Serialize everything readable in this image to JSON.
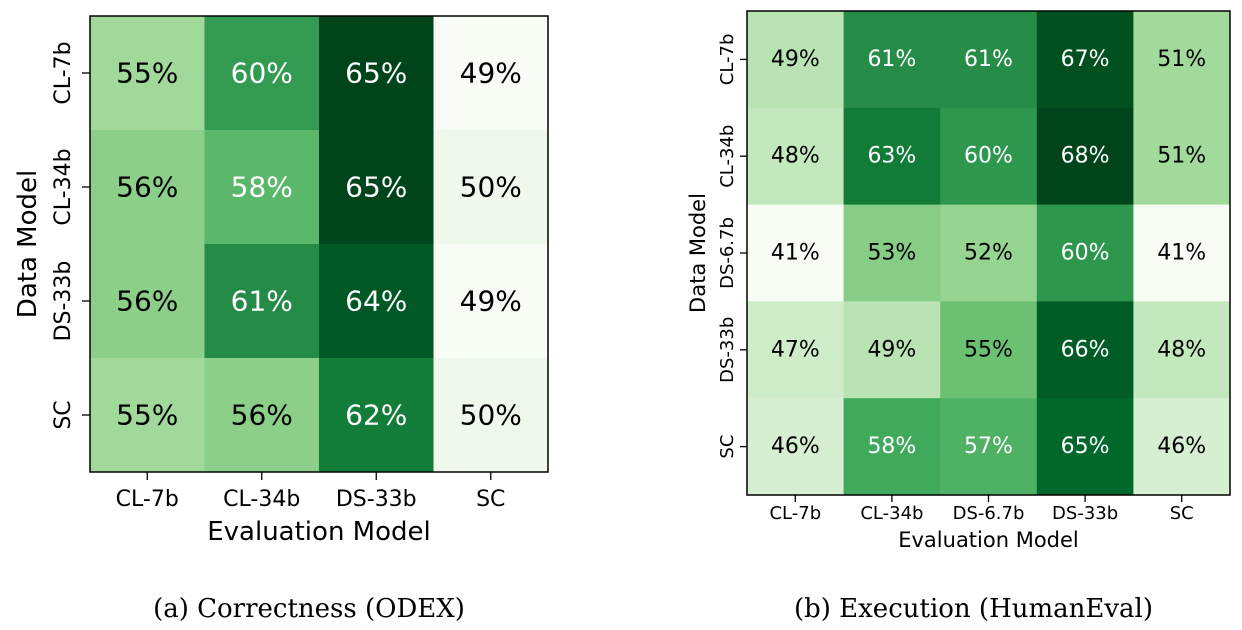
{
  "chart_data": [
    {
      "type": "heatmap",
      "caption": "(a) Correctness (ODEX)",
      "xlabel": "Evaluation Model",
      "ylabel": "Data Model",
      "x_categories": [
        "CL-7b",
        "CL-34b",
        "DS-33b",
        "SC"
      ],
      "y_categories": [
        "CL-7b",
        "CL-34b",
        "DS-33b",
        "SC"
      ],
      "values": [
        [
          55,
          60,
          65,
          49
        ],
        [
          56,
          58,
          65,
          50
        ],
        [
          56,
          61,
          64,
          49
        ],
        [
          55,
          56,
          62,
          50
        ]
      ],
      "value_suffix": "%",
      "colormap": "Greens",
      "vmin": 49,
      "vmax": 65
    },
    {
      "type": "heatmap",
      "caption": "(b) Execution (HumanEval)",
      "xlabel": "Evaluation Model",
      "ylabel": "Data Model",
      "x_categories": [
        "CL-7b",
        "CL-34b",
        "DS-6.7b",
        "DS-33b",
        "SC"
      ],
      "y_categories": [
        "CL-7b",
        "CL-34b",
        "DS-6.7b",
        "DS-33b",
        "SC"
      ],
      "values": [
        [
          49,
          61,
          61,
          67,
          51
        ],
        [
          48,
          63,
          60,
          68,
          51
        ],
        [
          41,
          53,
          52,
          60,
          41
        ],
        [
          47,
          49,
          55,
          66,
          48
        ],
        [
          46,
          58,
          57,
          65,
          46
        ]
      ],
      "value_suffix": "%",
      "colormap": "Greens",
      "vmin": 41,
      "vmax": 68
    }
  ]
}
